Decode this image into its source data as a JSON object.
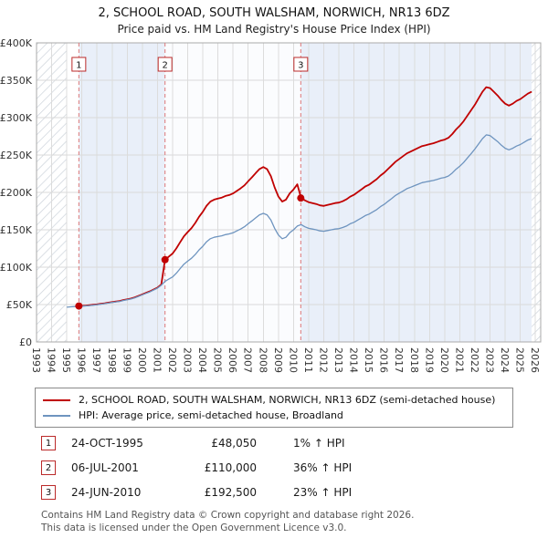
{
  "page": {
    "title": "2, SCHOOL ROAD, SOUTH WALSHAM, NORWICH, NR13 6DZ",
    "subtitle": "Price paid vs. HM Land Registry's House Price Index (HPI)"
  },
  "chart_data": {
    "type": "line",
    "title": "2, SCHOOL ROAD, SOUTH WALSHAM, NORWICH, NR13 6DZ",
    "subtitle": "Price paid vs. HM Land Registry's House Price Index (HPI)",
    "units": "GBP thousands",
    "x_unit": "year",
    "x_domain": [
      1993,
      2026.35
    ],
    "ylim": [
      0,
      400
    ],
    "grid": true,
    "legend_position": "below",
    "yticks": [
      {
        "v": 0,
        "label": "£0"
      },
      {
        "v": 50,
        "label": "£50K"
      },
      {
        "v": 100,
        "label": "£100K"
      },
      {
        "v": 150,
        "label": "£150K"
      },
      {
        "v": 200,
        "label": "£200K"
      },
      {
        "v": 250,
        "label": "£250K"
      },
      {
        "v": 300,
        "label": "£300K"
      },
      {
        "v": 350,
        "label": "£350K"
      },
      {
        "v": 400,
        "label": "£400K"
      }
    ],
    "xticks": [
      1993,
      1994,
      1995,
      1996,
      1997,
      1998,
      1999,
      2000,
      2001,
      2002,
      2003,
      2004,
      2005,
      2006,
      2007,
      2008,
      2009,
      2010,
      2011,
      2012,
      2013,
      2014,
      2015,
      2016,
      2017,
      2018,
      2019,
      2020,
      2021,
      2022,
      2023,
      2024,
      2025,
      2026
    ],
    "hatch_regions": [
      [
        1993,
        1995
      ],
      [
        2025.75,
        2026.35
      ]
    ],
    "bands": [
      {
        "from": 1995.8,
        "to": 2001.5,
        "color": "#e9eff9"
      },
      {
        "from": 2001.5,
        "to": 2010.48,
        "color": "#fbfcfe"
      },
      {
        "from": 2010.48,
        "to": 2025.75,
        "color": "#e9eff9"
      }
    ],
    "series": [
      {
        "name": "2, SCHOOL ROAD, SOUTH WALSHAM, NORWICH, NR13 6DZ (semi-detached house)",
        "color": "#c00000",
        "start": 1995.75,
        "step": 0.25,
        "values": [
          48.05,
          48.3,
          48.7,
          49.1,
          49.7,
          50.3,
          51.0,
          51.7,
          52.5,
          53.3,
          54.0,
          54.7,
          56.1,
          57.1,
          58.1,
          59.6,
          61.6,
          63.6,
          65.7,
          67.7,
          70.2,
          72.7,
          76.8,
          110.0,
          114.2,
          118.3,
          125.1,
          133.3,
          141.4,
          146.9,
          152.3,
          159.1,
          167.3,
          174.1,
          182.2,
          187.7,
          190.4,
          191.8,
          193.1,
          195.2,
          196.5,
          198.6,
          202.0,
          205.4,
          209.4,
          214.9,
          220.3,
          225.8,
          231.2,
          233.9,
          231.2,
          221.7,
          206.7,
          194.5,
          187.7,
          190.4,
          198.6,
          204.0,
          210.8,
          192.5,
          189.4,
          187.0,
          185.7,
          184.5,
          182.7,
          182.0,
          183.3,
          184.5,
          185.7,
          186.3,
          188.2,
          190.7,
          194.3,
          196.8,
          200.5,
          204.2,
          207.9,
          210.3,
          214.0,
          217.7,
          222.6,
          226.3,
          231.2,
          236.2,
          241.1,
          244.8,
          248.5,
          252.2,
          254.6,
          257.1,
          259.5,
          262.0,
          263.2,
          264.5,
          265.7,
          267.5,
          269.4,
          270.6,
          273.1,
          278.0,
          284.1,
          289.1,
          295.2,
          302.6,
          310.0,
          317.3,
          326.0,
          334.6,
          340.7,
          339.5,
          334.6,
          329.6,
          323.5,
          318.6,
          316.1,
          318.6,
          322.3,
          324.7,
          328.4,
          332.1,
          334.6
        ]
      },
      {
        "name": "HPI: Average price, semi-detached house, Broadland",
        "color": "#6e94bf",
        "start": 1995.0,
        "step": 0.25,
        "values": [
          46.5,
          47.0,
          47.3,
          47.6,
          47.8,
          48.2,
          48.6,
          49.2,
          49.8,
          50.5,
          51.2,
          52.0,
          52.8,
          53.5,
          54.2,
          55.5,
          56.5,
          57.5,
          59.0,
          61.0,
          63.0,
          65.0,
          67.0,
          69.5,
          72.0,
          76.0,
          81.0,
          84.0,
          87.0,
          92.0,
          98.0,
          104.0,
          108.0,
          112.0,
          117.0,
          123.0,
          128.0,
          134.0,
          138.0,
          140.0,
          141.0,
          142.0,
          143.5,
          144.5,
          146.0,
          148.5,
          151.0,
          154.0,
          158.0,
          162.0,
          166.0,
          170.0,
          172.0,
          170.0,
          163.0,
          152.0,
          143.0,
          138.0,
          140.0,
          146.0,
          150.0,
          155.0,
          157.0,
          154.0,
          152.0,
          151.0,
          150.0,
          148.5,
          148.0,
          149.0,
          150.0,
          151.0,
          151.5,
          153.0,
          155.0,
          158.0,
          160.0,
          163.0,
          166.0,
          169.0,
          171.0,
          174.0,
          177.0,
          181.0,
          184.0,
          188.0,
          192.0,
          196.0,
          199.0,
          202.0,
          205.0,
          207.0,
          209.0,
          211.0,
          213.0,
          214.0,
          215.0,
          216.0,
          217.5,
          219.0,
          220.0,
          222.0,
          226.0,
          231.0,
          235.0,
          240.0,
          246.0,
          252.0,
          258.0,
          265.0,
          272.0,
          277.0,
          276.0,
          272.0,
          268.0,
          263.0,
          259.0,
          257.0,
          259.0,
          262.0,
          264.0,
          267.0,
          270.0,
          272.0
        ]
      }
    ],
    "sales": [
      {
        "num": "1",
        "x": 1995.8,
        "y": 48.05
      },
      {
        "num": "2",
        "x": 2001.5,
        "y": 110.0
      },
      {
        "num": "3",
        "x": 2010.48,
        "y": 192.5
      }
    ]
  },
  "legend": {
    "items": [
      {
        "label": "2, SCHOOL ROAD, SOUTH WALSHAM, NORWICH, NR13 6DZ (semi-detached house)",
        "color": "#c00000"
      },
      {
        "label": "HPI: Average price, semi-detached house, Broadland",
        "color": "#6e94bf"
      }
    ]
  },
  "transactions": [
    {
      "num": "1",
      "date": "24-OCT-1995",
      "price": "£48,050",
      "hpi": "1% ↑ HPI"
    },
    {
      "num": "2",
      "date": "06-JUL-2001",
      "price": "£110,000",
      "hpi": "36% ↑ HPI"
    },
    {
      "num": "3",
      "date": "24-JUN-2010",
      "price": "£192,500",
      "hpi": "23% ↑ HPI"
    }
  ],
  "footer": {
    "line1": "Contains HM Land Registry data © Crown copyright and database right 2026.",
    "line2": "This data is licensed under the Open Government Licence v3.0."
  }
}
